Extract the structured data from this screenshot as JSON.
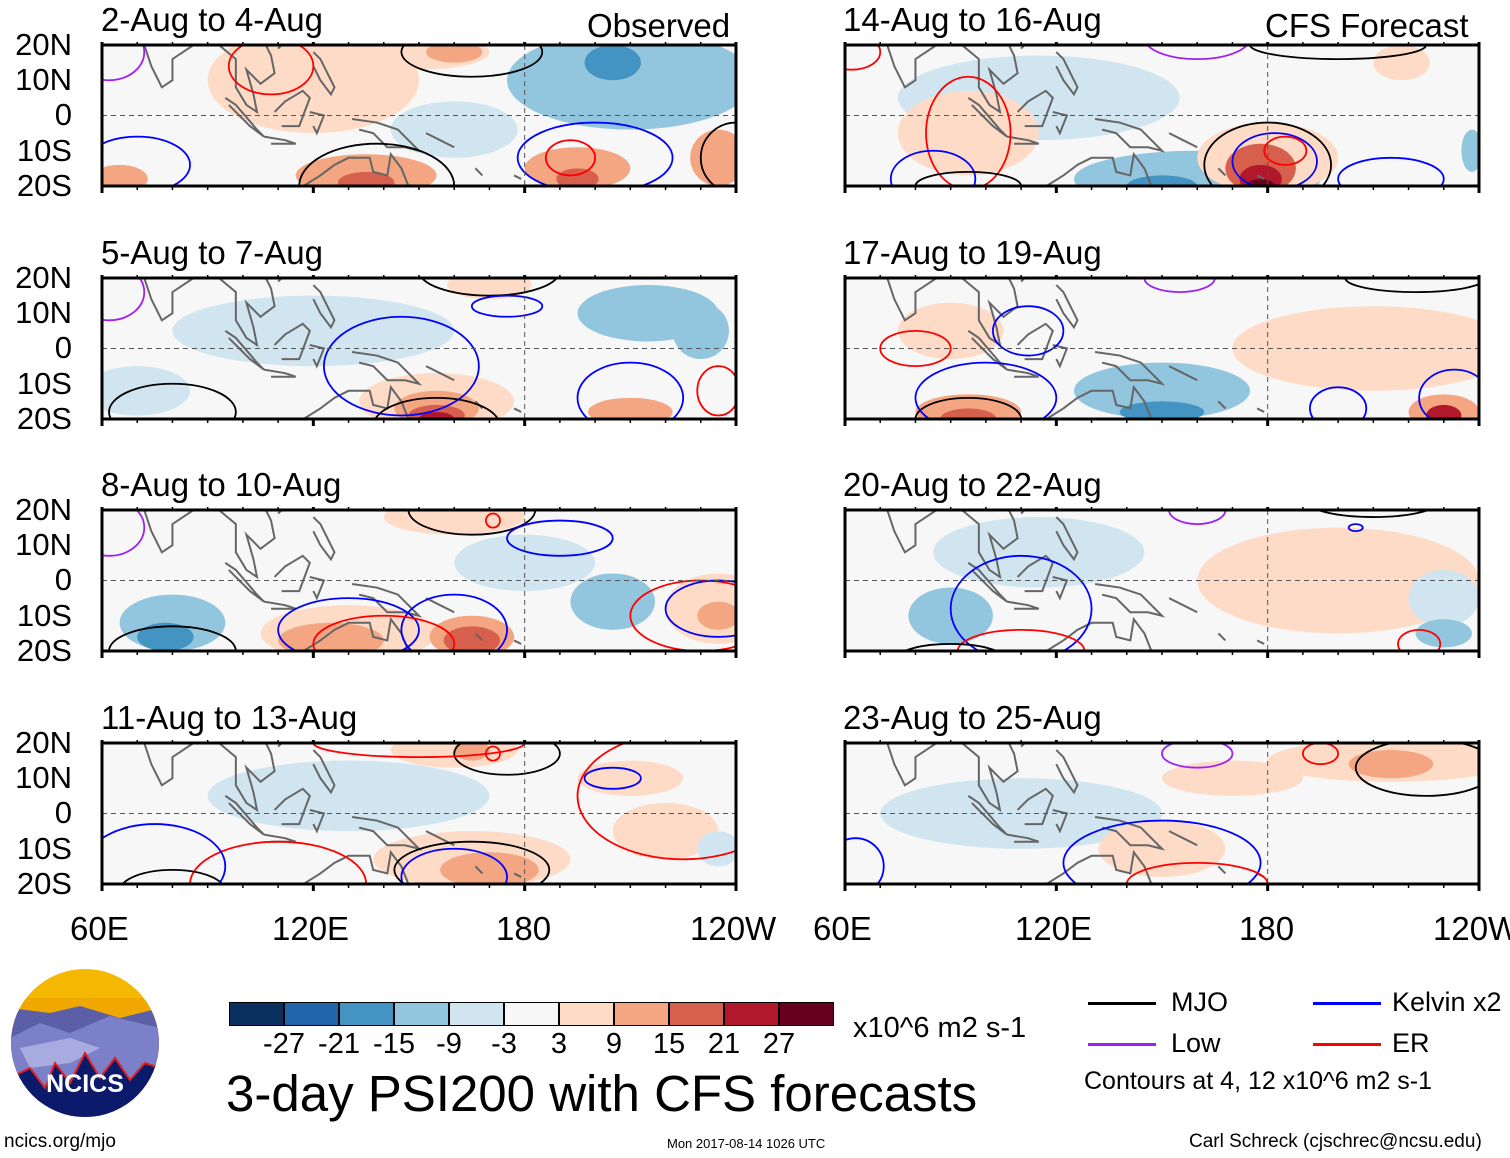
{
  "panels": {
    "observed_label": "Observed",
    "forecast_label": "CFS Forecast",
    "left": [
      "2-Aug to 4-Aug",
      "5-Aug to 7-Aug",
      "8-Aug to 10-Aug",
      "11-Aug to 13-Aug"
    ],
    "right": [
      "14-Aug to 16-Aug",
      "17-Aug to 19-Aug",
      "20-Aug to 22-Aug",
      "23-Aug to 25-Aug"
    ]
  },
  "axes": {
    "lat_labels": [
      "20N",
      "10N",
      "0",
      "10S",
      "20S"
    ],
    "lon_labels": [
      "60E",
      "120E",
      "180",
      "120W"
    ]
  },
  "colorbar": {
    "colors": [
      "#0b2f5f",
      "#2166ac",
      "#4393c3",
      "#92c5de",
      "#d1e5f0",
      "#f7f7f7",
      "#fddbc7",
      "#f4a582",
      "#d6604d",
      "#b2182b",
      "#67001f"
    ],
    "labels": [
      "-27",
      "-21",
      "-15",
      "-9",
      "-3",
      "3",
      "9",
      "15",
      "21",
      "27"
    ],
    "units": "x10^6 m2 s-1"
  },
  "title": "3-day PSI200 with CFS forecasts",
  "legend": {
    "items": [
      {
        "label": "MJO",
        "color": "#000000"
      },
      {
        "label": "Kelvin x2",
        "color": "#0000ff"
      },
      {
        "label": "Low",
        "color": "#a020f0"
      },
      {
        "label": "ER",
        "color": "#ff0000"
      }
    ],
    "contours_note": "Contours at 4, 12 x10^6 m2 s-1"
  },
  "logo": {
    "text": "NCICS"
  },
  "footer": {
    "url": "ncics.org/mjo",
    "timestamp": "Mon 2017-08-14 1026 UTC",
    "author": "Carl Schreck (cjschrec@ncsu.edu)"
  }
}
